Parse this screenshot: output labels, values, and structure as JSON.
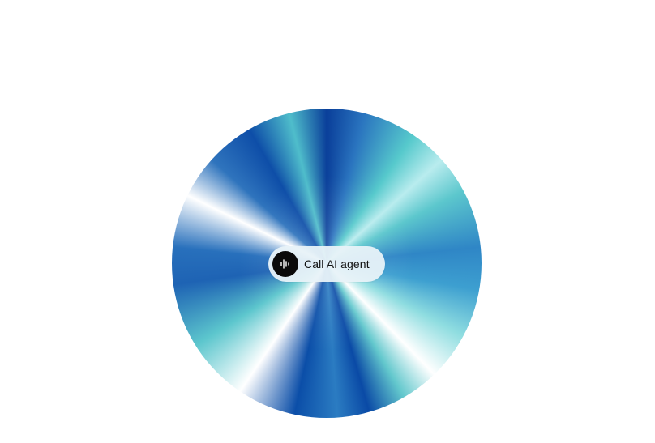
{
  "widget": {
    "call_button": {
      "label": "Call AI agent",
      "icon": "waveform-icon"
    }
  },
  "colors": {
    "orb_dark_blue": "#0a3f9a",
    "orb_mid_blue": "#2a74bf",
    "orb_teal": "#56c9cc",
    "button_bg": "#e8f2f8",
    "icon_bg": "#0a0a0a"
  }
}
